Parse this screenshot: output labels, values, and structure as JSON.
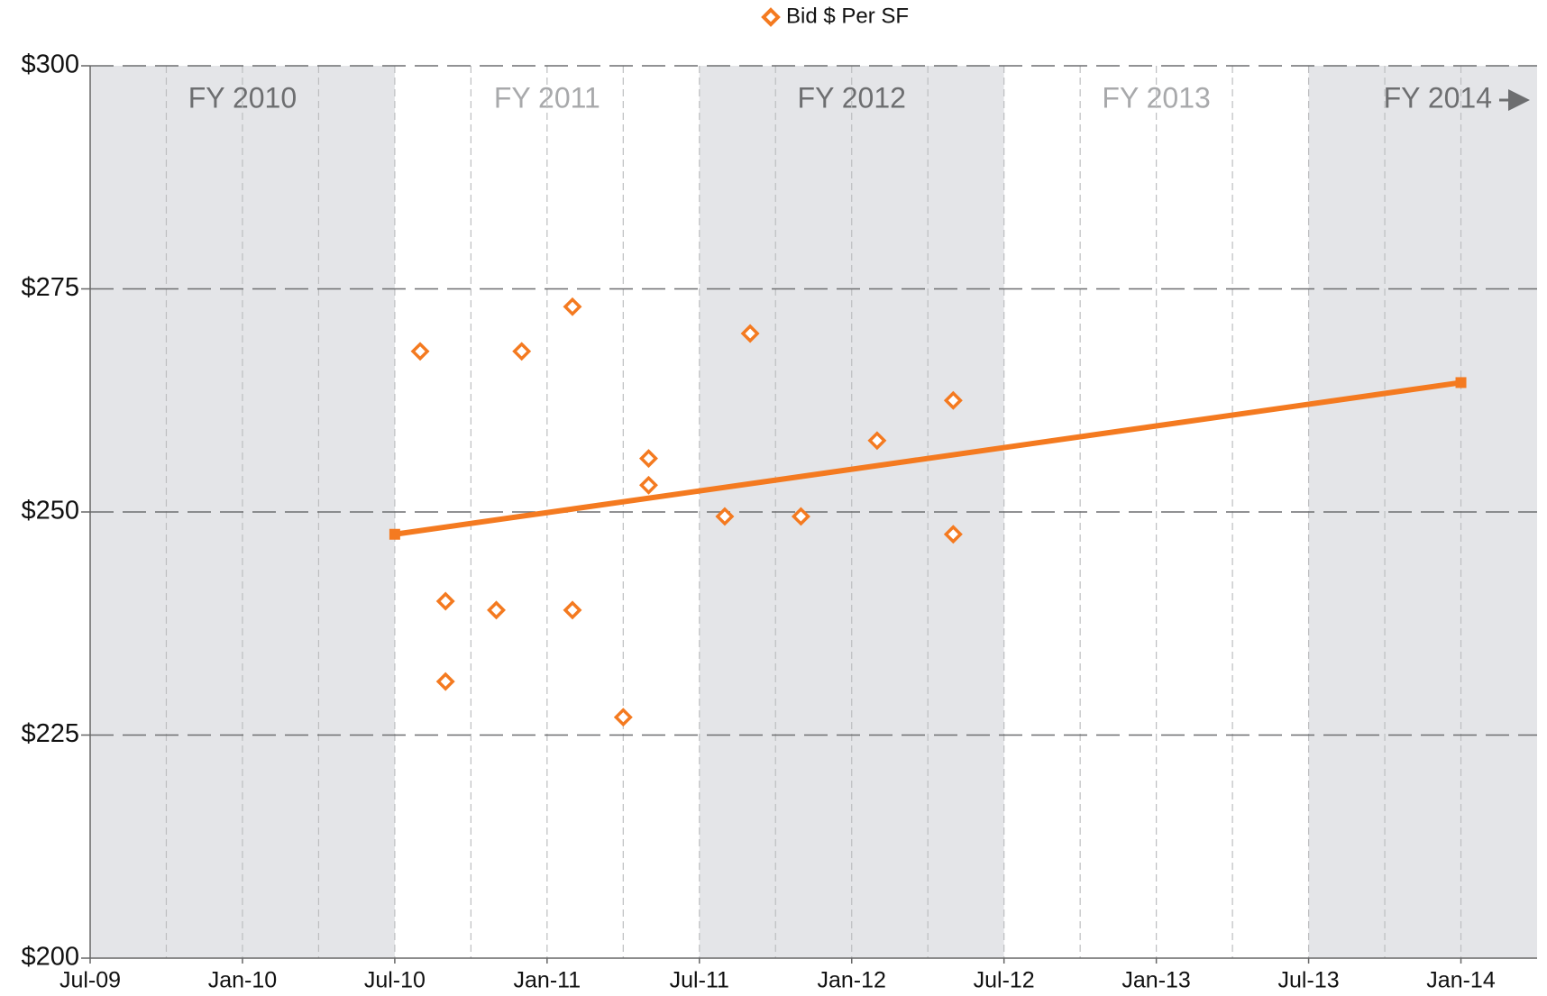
{
  "chart_data": {
    "type": "scatter",
    "color": "#f47a20",
    "series": [
      {
        "name": "Bid $ Per SF",
        "color": "#f47a20",
        "x": [
          "2010-08",
          "2010-09",
          "2010-09",
          "2010-11",
          "2010-12",
          "2011-02",
          "2011-02",
          "2011-04",
          "2011-05",
          "2011-05",
          "2011-08",
          "2011-09",
          "2011-11",
          "2012-02",
          "2012-05",
          "2012-05"
        ],
        "values": [
          268,
          240,
          231,
          239,
          268,
          239,
          273,
          227,
          253,
          256,
          249.5,
          270,
          249.5,
          258,
          262.5,
          247.5
        ]
      }
    ],
    "trendline": {
      "color": "#f47a20",
      "x": [
        "2010-07",
        "2014-01"
      ],
      "values": [
        247.5,
        264.5
      ]
    },
    "xlim": [
      "2009-07",
      "2014-04"
    ],
    "xticks": [
      {
        "value": "2009-07",
        "label": "Jul-09"
      },
      {
        "value": "2010-01",
        "label": "Jan-10"
      },
      {
        "value": "2010-07",
        "label": "Jul-10"
      },
      {
        "value": "2011-01",
        "label": "Jan-11"
      },
      {
        "value": "2011-07",
        "label": "Jul-11"
      },
      {
        "value": "2012-01",
        "label": "Jan-12"
      },
      {
        "value": "2012-07",
        "label": "Jul-12"
      },
      {
        "value": "2013-01",
        "label": "Jan-13"
      },
      {
        "value": "2013-07",
        "label": "Jul-13"
      },
      {
        "value": "2014-01",
        "label": "Jan-14"
      }
    ],
    "ylim": [
      200,
      300
    ],
    "yticks": [
      {
        "value": 200,
        "label": "$200"
      },
      {
        "value": 225,
        "label": "$225"
      },
      {
        "value": 250,
        "label": "$250"
      },
      {
        "value": 275,
        "label": "$275"
      },
      {
        "value": 300,
        "label": "$300"
      }
    ],
    "grid": true,
    "legend": "top",
    "fiscal_years": [
      {
        "label": "FY 2010",
        "start": "2009-07",
        "shaded": true
      },
      {
        "label": "FY 2011",
        "start": "2010-07",
        "shaded": false
      },
      {
        "label": "FY 2012",
        "start": "2011-07",
        "shaded": true
      },
      {
        "label": "FY 2013",
        "start": "2012-07",
        "shaded": false
      },
      {
        "label": "FY 2014",
        "start": "2013-07",
        "shaded": true
      }
    ]
  }
}
